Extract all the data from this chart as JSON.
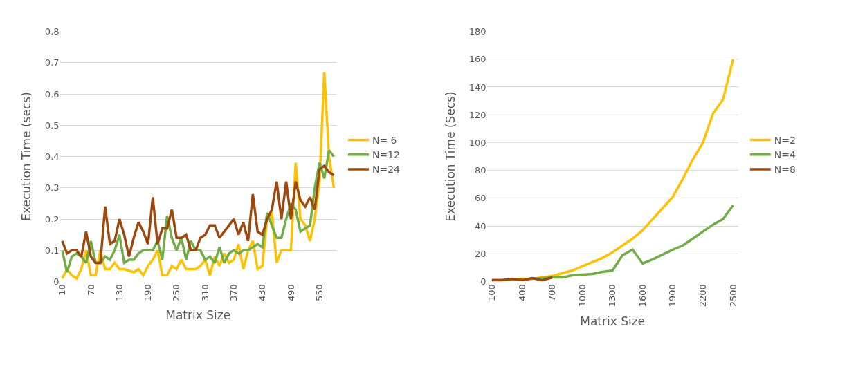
{
  "chart_data": [
    {
      "type": "line",
      "xlabel": "Matrix Size",
      "ylabel": "Execution Time (secs)",
      "categories": [
        "10",
        null,
        null,
        null,
        null,
        null,
        "70",
        null,
        null,
        null,
        null,
        null,
        "130",
        null,
        null,
        null,
        null,
        null,
        "190",
        null,
        null,
        null,
        null,
        null,
        "250",
        null,
        null,
        null,
        null,
        null,
        "310",
        null,
        null,
        null,
        null,
        null,
        "370",
        null,
        null,
        null,
        null,
        null,
        "430",
        null,
        null,
        null,
        null,
        null,
        "490",
        null,
        null,
        null,
        null,
        null,
        "550",
        null,
        null,
        null
      ],
      "series": [
        {
          "name": "N= 6",
          "color": "#ffc000",
          "values": [
            0.01,
            0.04,
            0.02,
            0.01,
            0.04,
            0.1,
            0.02,
            0.02,
            0.1,
            0.04,
            0.04,
            0.06,
            0.04,
            0.04,
            0.035,
            0.03,
            0.04,
            0.02,
            0.05,
            0.07,
            0.1,
            0.02,
            0.02,
            0.05,
            0.04,
            0.07,
            0.04,
            0.04,
            0.04,
            0.05,
            0.07,
            0.02,
            0.08,
            0.05,
            0.09,
            0.06,
            0.07,
            0.12,
            0.04,
            0.1,
            0.13,
            0.04,
            0.05,
            0.2,
            0.22,
            0.06,
            0.1,
            0.1,
            0.1,
            0.38,
            0.2,
            0.18,
            0.13,
            0.2,
            0.32,
            0.67,
            0.4,
            0.3
          ]
        },
        {
          "name": "N=12",
          "color": "#70ad47",
          "values": [
            0.1,
            0.03,
            0.08,
            0.09,
            0.08,
            0.06,
            0.13,
            0.06,
            0.06,
            0.08,
            0.07,
            0.1,
            0.15,
            0.06,
            0.07,
            0.07,
            0.09,
            0.1,
            0.1,
            0.1,
            0.13,
            0.07,
            0.21,
            0.14,
            0.1,
            0.14,
            0.07,
            0.13,
            0.1,
            0.1,
            0.07,
            0.08,
            0.06,
            0.11,
            0.06,
            0.09,
            0.1,
            0.09,
            0.1,
            0.1,
            0.11,
            0.12,
            0.11,
            0.22,
            0.18,
            0.14,
            0.14,
            0.2,
            0.25,
            0.23,
            0.16,
            0.17,
            0.18,
            0.3,
            0.38,
            0.33,
            0.42,
            0.4
          ]
        },
        {
          "name": "N=24",
          "color": "#9e480e",
          "values": [
            0.13,
            0.09,
            0.1,
            0.1,
            0.08,
            0.16,
            0.08,
            0.06,
            0.06,
            0.24,
            0.12,
            0.13,
            0.2,
            0.15,
            0.08,
            0.14,
            0.19,
            0.16,
            0.12,
            0.27,
            0.12,
            0.17,
            0.17,
            0.23,
            0.14,
            0.14,
            0.15,
            0.1,
            0.1,
            0.14,
            0.15,
            0.18,
            0.18,
            0.14,
            0.16,
            0.18,
            0.2,
            0.15,
            0.19,
            0.13,
            0.28,
            0.16,
            0.15,
            0.2,
            0.23,
            0.32,
            0.2,
            0.32,
            0.2,
            0.32,
            0.26,
            0.24,
            0.27,
            0.23,
            0.36,
            0.37,
            0.35,
            0.34
          ]
        }
      ],
      "ylim": [
        0,
        0.8
      ],
      "yticks": [
        0,
        0.1,
        0.2,
        0.3,
        0.4,
        0.5,
        0.6,
        0.7,
        0.8
      ],
      "grid": "y",
      "legend": "right"
    },
    {
      "type": "line",
      "xlabel": "Matrix Size",
      "ylabel": "Execution Time (Secs)",
      "categories": [
        "100",
        null,
        null,
        "400",
        null,
        null,
        "700",
        null,
        null,
        "1000",
        null,
        null,
        "1300",
        null,
        null,
        "1600",
        null,
        null,
        "1900",
        null,
        null,
        "2200",
        null,
        null,
        "2500"
      ],
      "series": [
        {
          "name": "N=2",
          "color": "#ffc000",
          "values": [
            1,
            1,
            1.5,
            2,
            2,
            3,
            4,
            6,
            8,
            11,
            14,
            17,
            21,
            26,
            31,
            37,
            45,
            53,
            61,
            74,
            88,
            100,
            121,
            131,
            160
          ]
        },
        {
          "name": "N=4",
          "color": "#70ad47",
          "values": [
            1,
            1,
            1.5,
            1.5,
            2,
            2.5,
            3,
            3,
            4.5,
            5,
            5.5,
            7,
            8,
            19,
            23,
            13,
            16,
            19.5,
            23,
            26,
            31,
            36,
            41,
            45,
            55
          ]
        },
        {
          "name": "N=8",
          "color": "#9e480e",
          "values": [
            1,
            1,
            2,
            1,
            2.5,
            1,
            3,
            null,
            null,
            null,
            null,
            null,
            null,
            null,
            null,
            null,
            null,
            null,
            null,
            null,
            null,
            null,
            null,
            null,
            null
          ]
        }
      ],
      "ylim": [
        0,
        180
      ],
      "yticks": [
        0,
        20,
        40,
        60,
        80,
        100,
        120,
        140,
        160,
        180
      ],
      "grid": "y",
      "legend": "right"
    }
  ]
}
